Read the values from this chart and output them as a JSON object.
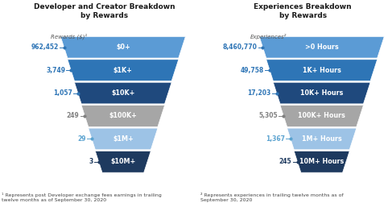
{
  "left_title": "Developer and Creator Breakdown\nby Rewards",
  "right_title": "Experiences Breakdown\nby Rewards",
  "left_axis_label": "Rewards ($)¹",
  "right_axis_label": "Experiences²",
  "left_footnote": "¹ Represents post Developer exchange fees earnings in trailing\ntwelve months as of September 30, 2020",
  "right_footnote": "² Represents experiences in trailing twelve months as of\nSeptember 30, 2020",
  "left_labels": [
    "$0+",
    "$1K+",
    "$10K+",
    "$100K+",
    "$1M+",
    "$10M+"
  ],
  "left_values": [
    "962,452",
    "3,749",
    "1,057",
    "249",
    "29",
    "3"
  ],
  "left_colors": [
    "#5b9bd5",
    "#2e75b6",
    "#1f497d",
    "#a6a6a6",
    "#9dc3e6",
    "#1e3a5f"
  ],
  "left_value_colors": [
    "#2e75b6",
    "#2e75b6",
    "#2e75b6",
    "#808080",
    "#5ba3d0",
    "#1e3a5f"
  ],
  "right_labels": [
    ">0 Hours",
    "1K+ Hours",
    "10K+ Hours",
    "100K+ Hours",
    "1M+ Hours",
    "10M+ Hours"
  ],
  "right_values": [
    "8,460,770",
    "49,758",
    "17,203",
    "5,305",
    "1,367",
    "245"
  ],
  "right_colors": [
    "#5b9bd5",
    "#2e75b6",
    "#1f497d",
    "#a6a6a6",
    "#9dc3e6",
    "#1e3a5f"
  ],
  "right_value_colors": [
    "#2e75b6",
    "#2e75b6",
    "#2e75b6",
    "#808080",
    "#5ba3d0",
    "#1e3a5f"
  ],
  "bg_color": "#ffffff",
  "text_color_white": "#ffffff",
  "title_fontsize": 6.5,
  "label_fontsize": 5.8,
  "value_fontsize": 5.5,
  "footnote_fontsize": 4.5,
  "axis_label_fontsize": 5.0
}
